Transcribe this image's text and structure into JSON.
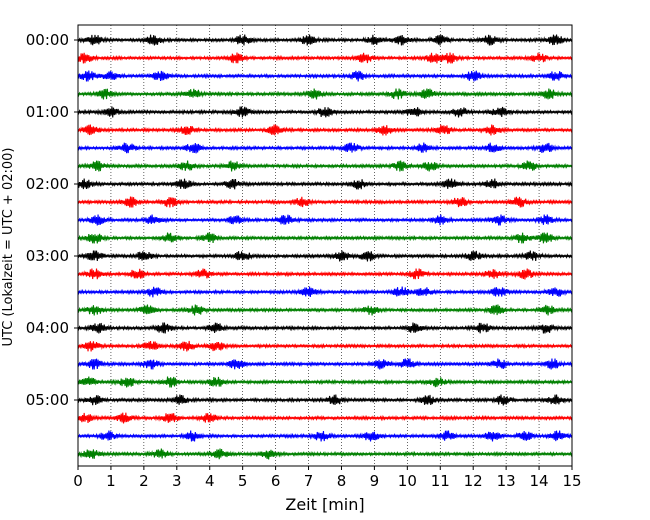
{
  "chart_data": {
    "type": "line",
    "subtype": "helicorder",
    "xlabel": "Zeit  [min]",
    "ylabel": "UTC (Lokalzeit = UTC + 02:00)",
    "xlim": [
      0,
      15
    ],
    "x_ticks": [
      0,
      1,
      2,
      3,
      4,
      5,
      6,
      7,
      8,
      9,
      10,
      11,
      12,
      13,
      14,
      15
    ],
    "x_tick_labels": [
      "0",
      "1",
      "2",
      "3",
      "4",
      "5",
      "6",
      "7",
      "8",
      "9",
      "10",
      "11",
      "12",
      "13",
      "14",
      "15"
    ],
    "y_tick_labels": [
      "00:00",
      "01:00",
      "02:00",
      "03:00",
      "04:00",
      "05:00"
    ],
    "y_tick_rows": [
      0,
      4,
      8,
      12,
      16,
      20
    ],
    "row_count": 24,
    "minutes_per_row": 15,
    "vertical_grid": "dotted",
    "line_colors": [
      "#000000",
      "#ff0000",
      "#0000ff",
      "#008000"
    ],
    "rows": [
      {
        "start": "00:00",
        "color": "#000000",
        "peaks": [
          0.5,
          2.3,
          5.0,
          7.0,
          9.0,
          9.8,
          11.0,
          12.5,
          14.5
        ]
      },
      {
        "start": "00:15",
        "color": "#ff0000",
        "peaks": [
          0.2,
          4.8,
          8.7,
          10.8,
          11.3,
          14.0
        ]
      },
      {
        "start": "00:30",
        "color": "#0000ff",
        "peaks": [
          0.3,
          1.0,
          2.5,
          8.5,
          12.0,
          14.5
        ]
      },
      {
        "start": "00:45",
        "color": "#008000",
        "peaks": [
          0.8,
          3.5,
          7.2,
          9.7,
          10.6,
          14.3
        ]
      },
      {
        "start": "01:00",
        "color": "#000000",
        "peaks": [
          1.0,
          5.0,
          7.5,
          10.2,
          11.6,
          12.8
        ]
      },
      {
        "start": "01:15",
        "color": "#ff0000",
        "peaks": [
          0.4,
          3.3,
          6.0,
          9.3,
          11.1,
          12.6
        ]
      },
      {
        "start": "01:30",
        "color": "#0000ff",
        "peaks": [
          1.5,
          3.5,
          8.3,
          10.5,
          12.6,
          14.2
        ]
      },
      {
        "start": "01:45",
        "color": "#008000",
        "peaks": [
          0.6,
          3.3,
          4.7,
          9.8,
          10.7,
          13.7
        ]
      },
      {
        "start": "02:00",
        "color": "#000000",
        "peaks": [
          0.2,
          3.2,
          4.7,
          8.5,
          11.3,
          12.6
        ]
      },
      {
        "start": "02:15",
        "color": "#ff0000",
        "peaks": [
          1.6,
          2.8,
          6.8,
          11.6,
          13.4
        ]
      },
      {
        "start": "02:30",
        "color": "#0000ff",
        "peaks": [
          0.6,
          2.3,
          4.8,
          6.3,
          11.0,
          12.8,
          14.2
        ]
      },
      {
        "start": "02:45",
        "color": "#008000",
        "peaks": [
          0.5,
          2.8,
          4.0,
          13.5,
          14.2
        ]
      },
      {
        "start": "03:00",
        "color": "#000000",
        "peaks": [
          0.5,
          2.0,
          5.0,
          8.0,
          8.8,
          12.0,
          13.8
        ]
      },
      {
        "start": "03:15",
        "color": "#ff0000",
        "peaks": [
          0.5,
          1.8,
          3.8,
          10.3,
          12.6,
          13.6
        ]
      },
      {
        "start": "03:30",
        "color": "#0000ff",
        "peaks": [
          2.3,
          7.0,
          9.8,
          10.5,
          12.8,
          14.5
        ]
      },
      {
        "start": "03:45",
        "color": "#008000",
        "peaks": [
          0.5,
          2.1,
          3.6,
          8.9,
          12.7,
          14.3
        ]
      },
      {
        "start": "04:00",
        "color": "#000000",
        "peaks": [
          0.6,
          2.6,
          4.2,
          10.2,
          12.3,
          14.2
        ]
      },
      {
        "start": "04:15",
        "color": "#ff0000",
        "peaks": [
          0.4,
          2.2,
          3.3,
          4.2
        ]
      },
      {
        "start": "04:30",
        "color": "#0000ff",
        "peaks": [
          0.5,
          2.2,
          4.8,
          9.2,
          10.0,
          12.8,
          14.4
        ]
      },
      {
        "start": "04:45",
        "color": "#008000",
        "peaks": [
          0.3,
          1.5,
          2.8,
          4.2,
          10.9
        ]
      },
      {
        "start": "05:00",
        "color": "#000000",
        "peaks": [
          0.5,
          3.1,
          7.8,
          10.6,
          12.9,
          14.5
        ]
      },
      {
        "start": "05:15",
        "color": "#ff0000",
        "peaks": [
          0.2,
          1.4,
          2.8,
          4.0
        ]
      },
      {
        "start": "05:30",
        "color": "#0000ff",
        "peaks": [
          0.9,
          3.5,
          7.4,
          8.9,
          11.2,
          12.6,
          13.6,
          14.6
        ]
      },
      {
        "start": "05:45",
        "color": "#008000",
        "peaks": [
          0.4,
          2.5,
          4.3,
          5.8
        ]
      }
    ]
  }
}
